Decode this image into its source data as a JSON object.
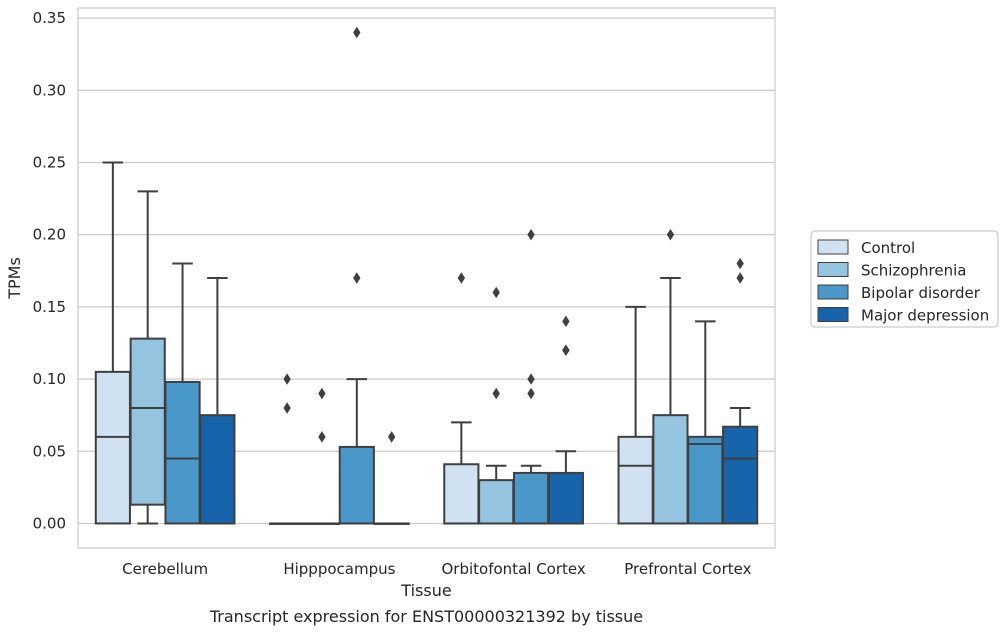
{
  "caption": "Transcript expression for ENST00000321392 by tissue",
  "chart_data": {
    "type": "box",
    "xlabel": "Tissue",
    "ylabel": "TPMs",
    "ylim": [
      -0.017,
      0.357
    ],
    "yticks": [
      "0.00",
      "0.05",
      "0.10",
      "0.15",
      "0.20",
      "0.25",
      "0.30",
      "0.35"
    ],
    "grid": "horizontal",
    "legend_position": "right",
    "categories": [
      "Cerebellum",
      "Hipppocampus",
      "Orbitofontal Cortex",
      "Prefrontal Cortex"
    ],
    "series": [
      {
        "name": "Control",
        "color": "#d0e1f2",
        "boxes": [
          {
            "min": 0.0,
            "q1": 0.0,
            "median": 0.06,
            "q3": 0.105,
            "max": 0.25,
            "outliers": []
          },
          {
            "min": 0.0,
            "q1": 0.0,
            "median": 0.0,
            "q3": 0.0,
            "max": 0.0,
            "outliers": [
              0.08,
              0.1
            ]
          },
          {
            "min": 0.0,
            "q1": 0.0,
            "median": 0.0,
            "q3": 0.041,
            "max": 0.07,
            "outliers": [
              0.17
            ]
          },
          {
            "min": 0.0,
            "q1": 0.0,
            "median": 0.04,
            "q3": 0.06,
            "max": 0.15,
            "outliers": []
          }
        ]
      },
      {
        "name": "Schizophrenia",
        "color": "#94c4df",
        "boxes": [
          {
            "min": 0.0,
            "q1": 0.013,
            "median": 0.08,
            "q3": 0.128,
            "max": 0.23,
            "outliers": []
          },
          {
            "min": 0.0,
            "q1": 0.0,
            "median": 0.0,
            "q3": 0.0,
            "max": 0.0,
            "outliers": [
              0.06,
              0.09
            ]
          },
          {
            "min": 0.0,
            "q1": 0.0,
            "median": 0.0,
            "q3": 0.03,
            "max": 0.04,
            "outliers": [
              0.09,
              0.16
            ]
          },
          {
            "min": 0.0,
            "q1": 0.0,
            "median": 0.0,
            "q3": 0.075,
            "max": 0.17,
            "outliers": [
              0.2
            ]
          }
        ]
      },
      {
        "name": "Bipolar disorder",
        "color": "#4a98c9",
        "boxes": [
          {
            "min": 0.0,
            "q1": 0.0,
            "median": 0.045,
            "q3": 0.098,
            "max": 0.18,
            "outliers": []
          },
          {
            "min": 0.0,
            "q1": 0.0,
            "median": 0.0,
            "q3": 0.053,
            "max": 0.1,
            "outliers": [
              0.17,
              0.34
            ]
          },
          {
            "min": 0.0,
            "q1": 0.0,
            "median": 0.0,
            "q3": 0.035,
            "max": 0.04,
            "outliers": [
              0.09,
              0.1,
              0.2
            ]
          },
          {
            "min": 0.0,
            "q1": 0.0,
            "median": 0.055,
            "q3": 0.06,
            "max": 0.14,
            "outliers": []
          }
        ]
      },
      {
        "name": "Major depression",
        "color": "#1764ab",
        "boxes": [
          {
            "min": 0.0,
            "q1": 0.0,
            "median": 0.0,
            "q3": 0.075,
            "max": 0.17,
            "outliers": []
          },
          {
            "min": 0.0,
            "q1": 0.0,
            "median": 0.0,
            "q3": 0.0,
            "max": 0.0,
            "outliers": [
              0.06
            ]
          },
          {
            "min": 0.0,
            "q1": 0.0,
            "median": 0.0,
            "q3": 0.035,
            "max": 0.05,
            "outliers": [
              0.12,
              0.12,
              0.14
            ]
          },
          {
            "min": 0.0,
            "q1": 0.0,
            "median": 0.045,
            "q3": 0.067,
            "max": 0.08,
            "outliers": [
              0.17,
              0.18
            ]
          }
        ]
      }
    ]
  }
}
